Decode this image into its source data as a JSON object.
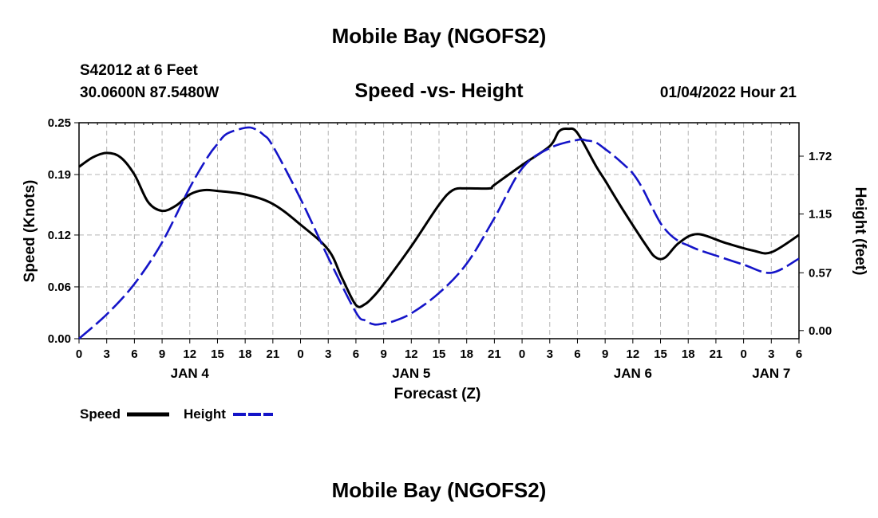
{
  "header": {
    "title": "Mobile Bay (NGOFS2)",
    "station": "S42012 at 6 Feet",
    "coords": "30.0600N  87.5480W",
    "datetime": "01/04/2022 Hour 21"
  },
  "footer": {
    "title": "Mobile Bay (NGOFS2)"
  },
  "colors": {
    "speed": "#000000",
    "height": "#1414c8",
    "grid": "#b4b4b4"
  },
  "chart_data": {
    "type": "line",
    "title": "Speed -vs- Height",
    "xlabel": "Forecast (Z)",
    "ylabel": "Speed (Knots)",
    "ylabel_right": "Height (feet)",
    "x_unit": "hours from JAN 4 00Z",
    "xlim": [
      0,
      78
    ],
    "ylim": [
      0,
      0.25
    ],
    "ylim_right": [
      -0.08,
      2.05
    ],
    "x_ticks": [
      0,
      3,
      6,
      9,
      12,
      15,
      18,
      21,
      24,
      27,
      30,
      33,
      36,
      39,
      42,
      45,
      48,
      51,
      54,
      57,
      60,
      63,
      66,
      69,
      72,
      75,
      78
    ],
    "x_tick_labels": [
      "0",
      "3",
      "6",
      "9",
      "12",
      "15",
      "18",
      "21",
      "0",
      "3",
      "6",
      "9",
      "12",
      "15",
      "18",
      "21",
      "0",
      "3",
      "6",
      "9",
      "12",
      "15",
      "18",
      "21",
      "0",
      "3",
      "6"
    ],
    "date_labels": [
      {
        "x": 12,
        "label": "JAN 4"
      },
      {
        "x": 36,
        "label": "JAN 5"
      },
      {
        "x": 60,
        "label": "JAN 6"
      },
      {
        "x": 75,
        "label": "JAN 7"
      }
    ],
    "y_ticks": [
      0.0,
      0.06,
      0.12,
      0.19,
      0.25
    ],
    "y_tick_labels": [
      "0.00",
      "0.06",
      "0.12",
      "0.19",
      "0.25"
    ],
    "y_ticks_right": [
      0.0,
      0.57,
      1.15,
      1.72
    ],
    "y_tick_labels_right": [
      "0.00",
      "0.57",
      "1.15",
      "1.72"
    ],
    "legend": [
      {
        "label": "Speed",
        "series": "speed"
      },
      {
        "label": "Height",
        "series": "height"
      }
    ],
    "series": [
      {
        "name": "Speed",
        "axis": "left",
        "style": "solid",
        "x": [
          0,
          1.5,
          3,
          4.5,
          6,
          7.5,
          9,
          10.5,
          12,
          13.5,
          15,
          18,
          21,
          24,
          27,
          28.5,
          30,
          31,
          32,
          33,
          36,
          39,
          40.5,
          42,
          44.5,
          45,
          48,
          51,
          52,
          53,
          54,
          56,
          57,
          59,
          61.5,
          62.5,
          63.5,
          65,
          67,
          70,
          73,
          75,
          78
        ],
        "values": [
          0.199,
          0.21,
          0.215,
          0.21,
          0.19,
          0.158,
          0.148,
          0.154,
          0.167,
          0.172,
          0.171,
          0.167,
          0.156,
          0.132,
          0.103,
          0.07,
          0.039,
          0.04,
          0.05,
          0.063,
          0.107,
          0.155,
          0.172,
          0.174,
          0.174,
          0.178,
          0.201,
          0.223,
          0.24,
          0.243,
          0.238,
          0.2,
          0.183,
          0.148,
          0.107,
          0.094,
          0.094,
          0.111,
          0.121,
          0.111,
          0.102,
          0.1,
          0.12
        ]
      },
      {
        "name": "Height",
        "axis": "right",
        "style": "dashed",
        "x": [
          0,
          3,
          6,
          9,
          12,
          14,
          15,
          16,
          18,
          19,
          20,
          21,
          24,
          27,
          30,
          31,
          32,
          33,
          34,
          36,
          39,
          42,
          45,
          48,
          51,
          54,
          55,
          56,
          57,
          58,
          59,
          60,
          61,
          62,
          63,
          64,
          65,
          66,
          67,
          69,
          72,
          75,
          78
        ],
        "values": [
          -0.08,
          0.16,
          0.46,
          0.87,
          1.41,
          1.72,
          1.84,
          1.94,
          2.0,
          1.99,
          1.93,
          1.82,
          1.3,
          0.72,
          0.18,
          0.1,
          0.06,
          0.07,
          0.09,
          0.17,
          0.37,
          0.66,
          1.11,
          1.6,
          1.8,
          1.88,
          1.875,
          1.855,
          1.79,
          1.72,
          1.64,
          1.55,
          1.41,
          1.23,
          1.06,
          0.95,
          0.88,
          0.84,
          0.8,
          0.74,
          0.65,
          0.57,
          0.71
        ]
      }
    ]
  }
}
